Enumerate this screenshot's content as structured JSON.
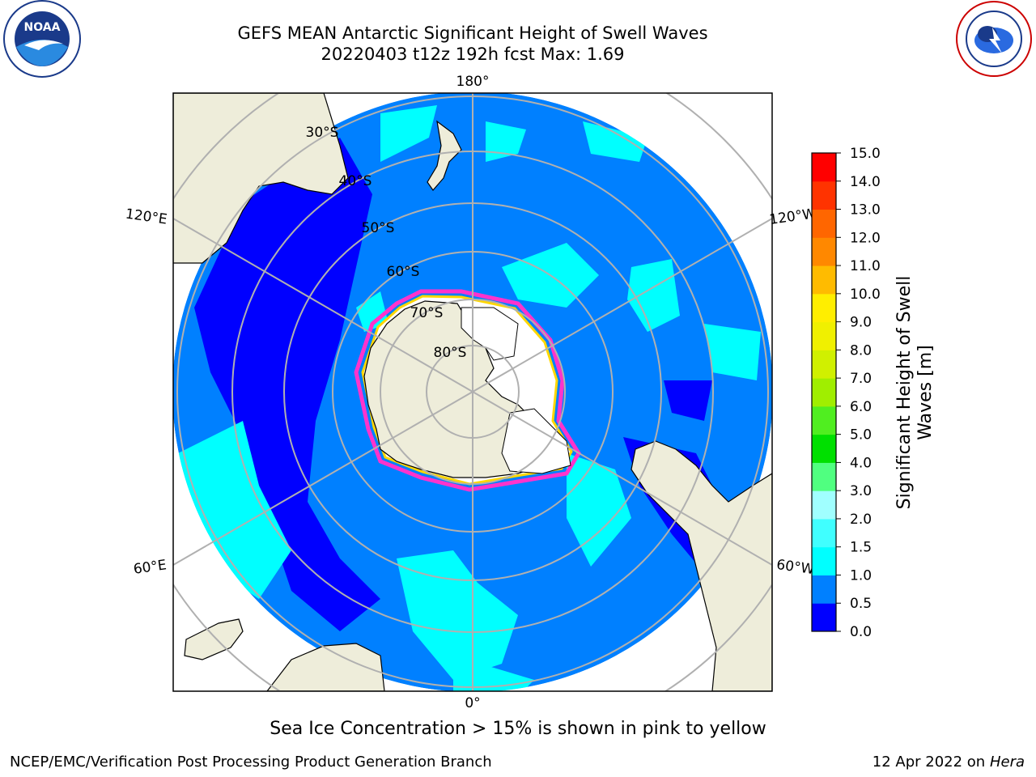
{
  "header": {
    "title": "GEFS MEAN Antarctic Significant Height of Swell Waves",
    "subtitle": "20220403 t12z 192h fcst   Max: 1.69"
  },
  "logos": {
    "left": {
      "icon": "noaa-logo-icon",
      "text_top": "NATIONAL OCEANIC AND ATMOSPHERIC ADMINISTRATION",
      "text_bottom": "U.S. DEPARTMENT OF COMMERCE",
      "center": "NOAA"
    },
    "right": {
      "icon": "nws-logo-icon",
      "text": "NATIONAL WEATHER SERVICE"
    }
  },
  "map": {
    "projection": "south-polar-stereographic",
    "longitude_labels": [
      "180°",
      "120°E",
      "120°W",
      "60°E",
      "60°W",
      "0°"
    ],
    "latitude_labels": [
      "30°S",
      "40°S",
      "50°S",
      "60°S",
      "70°S",
      "80°S"
    ],
    "colors": {
      "land": "#eeedda",
      "ice_free_ocean_low": "#0000ff",
      "ocean_mid": "#0080ff",
      "ocean_high": "#00ffff",
      "ice_edge": "#ff33cc",
      "ice_inner": "#ffd700",
      "grid": "#b0b0b0"
    }
  },
  "colorbar": {
    "label": "Significant Height of Swell Waves [m]",
    "label_line1": "Significant Height of Swell",
    "label_line2": "Waves [m]",
    "ticks": [
      "0.0",
      "0.5",
      "1.0",
      "1.5",
      "2.0",
      "3.0",
      "4.0",
      "5.0",
      "6.0",
      "7.0",
      "8.0",
      "9.0",
      "10.0",
      "11.0",
      "12.0",
      "13.0",
      "14.0",
      "15.0"
    ],
    "colors": [
      "#0000ff",
      "#0080ff",
      "#00ffff",
      "#40ffff",
      "#a0ffff",
      "#50ff80",
      "#00e000",
      "#50ee20",
      "#a0ee00",
      "#d0f000",
      "#f0f000",
      "#ffee00",
      "#ffbb00",
      "#ff8800",
      "#ff6600",
      "#ff3300",
      "#ff0000"
    ]
  },
  "note": "Sea Ice Concentration > 15% is shown in pink to yellow",
  "footer": {
    "left": "NCEP/EMC/Verification Post Processing Product Generation Branch",
    "right_prefix": "12 Apr 2022 on ",
    "right_machine": "Hera"
  }
}
